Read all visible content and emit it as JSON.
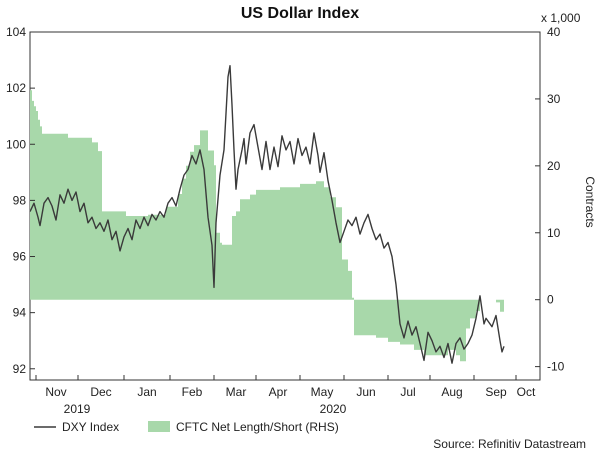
{
  "chart_data": {
    "type": "line",
    "title": "US Dollar Index",
    "left_axis": {
      "ticks": [
        92,
        94,
        96,
        98,
        100,
        102,
        104
      ],
      "ylim": [
        91.6,
        104
      ]
    },
    "right_axis": {
      "label": "Contracts",
      "multiplier": "x 1,000",
      "ticks": [
        -10,
        0,
        10,
        20,
        30,
        40
      ],
      "ylim": [
        -12,
        40
      ]
    },
    "x_axis": {
      "months": [
        "Nov",
        "Dec",
        "Jan",
        "Feb",
        "Mar",
        "Apr",
        "May",
        "Jun",
        "Jul",
        "Aug",
        "Sep",
        "Oct"
      ],
      "years": [
        "2019",
        "2020"
      ]
    },
    "legend": [
      {
        "name": "DXY Index",
        "symbol": "line",
        "color": "#3a3a3a"
      },
      {
        "name": "CFTC Net Length/Short (RHS)",
        "symbol": "area",
        "color": "#a8d8aa"
      }
    ],
    "source": "Source: Refinitiv Datastream",
    "series": [
      {
        "name": "DXY Index",
        "axis": "left",
        "color": "#3a3a3a",
        "points": [
          [
            0,
            97.6
          ],
          [
            4,
            97.9
          ],
          [
            8,
            97.4
          ],
          [
            10,
            97.1
          ],
          [
            14,
            97.9
          ],
          [
            18,
            98.1
          ],
          [
            22,
            97.8
          ],
          [
            26,
            97.3
          ],
          [
            30,
            98.2
          ],
          [
            34,
            97.9
          ],
          [
            38,
            98.4
          ],
          [
            42,
            98.0
          ],
          [
            46,
            98.3
          ],
          [
            50,
            97.6
          ],
          [
            54,
            97.9
          ],
          [
            58,
            97.2
          ],
          [
            62,
            97.4
          ],
          [
            66,
            97.0
          ],
          [
            70,
            97.2
          ],
          [
            74,
            96.9
          ],
          [
            78,
            97.3
          ],
          [
            82,
            96.6
          ],
          [
            86,
            96.9
          ],
          [
            90,
            96.2
          ],
          [
            94,
            96.7
          ],
          [
            98,
            97.0
          ],
          [
            102,
            96.6
          ],
          [
            106,
            97.3
          ],
          [
            110,
            97.0
          ],
          [
            114,
            97.4
          ],
          [
            118,
            97.1
          ],
          [
            122,
            97.5
          ],
          [
            126,
            97.3
          ],
          [
            130,
            97.6
          ],
          [
            134,
            97.4
          ],
          [
            138,
            97.9
          ],
          [
            142,
            98.1
          ],
          [
            146,
            97.8
          ],
          [
            150,
            98.4
          ],
          [
            154,
            98.9
          ],
          [
            158,
            99.1
          ],
          [
            162,
            99.6
          ],
          [
            166,
            99.3
          ],
          [
            170,
            99.8
          ],
          [
            174,
            99.1
          ],
          [
            178,
            97.4
          ],
          [
            182,
            96.4
          ],
          [
            184,
            94.9
          ],
          [
            186,
            97.2
          ],
          [
            190,
            98.9
          ],
          [
            194,
            99.8
          ],
          [
            198,
            102.4
          ],
          [
            200,
            102.8
          ],
          [
            202,
            101.4
          ],
          [
            204,
            99.8
          ],
          [
            206,
            98.4
          ],
          [
            208,
            99.1
          ],
          [
            212,
            99.8
          ],
          [
            214,
            100.2
          ],
          [
            216,
            99.3
          ],
          [
            220,
            100.4
          ],
          [
            224,
            100.7
          ],
          [
            228,
            99.9
          ],
          [
            232,
            99.1
          ],
          [
            236,
            100.1
          ],
          [
            240,
            99.1
          ],
          [
            244,
            99.9
          ],
          [
            248,
            99.2
          ],
          [
            252,
            100.3
          ],
          [
            256,
            99.8
          ],
          [
            260,
            100.1
          ],
          [
            264,
            99.3
          ],
          [
            268,
            100.2
          ],
          [
            272,
            99.6
          ],
          [
            276,
            99.9
          ],
          [
            280,
            99.3
          ],
          [
            284,
            100.4
          ],
          [
            288,
            99.6
          ],
          [
            290,
            99.0
          ],
          [
            294,
            99.7
          ],
          [
            298,
            98.7
          ],
          [
            302,
            98.0
          ],
          [
            306,
            97.2
          ],
          [
            310,
            96.5
          ],
          [
            314,
            96.9
          ],
          [
            318,
            97.3
          ],
          [
            322,
            97.1
          ],
          [
            326,
            97.4
          ],
          [
            330,
            96.8
          ],
          [
            334,
            97.2
          ],
          [
            338,
            97.5
          ],
          [
            342,
            97.0
          ],
          [
            346,
            96.6
          ],
          [
            350,
            96.8
          ],
          [
            354,
            96.3
          ],
          [
            358,
            96.5
          ],
          [
            362,
            96.0
          ],
          [
            366,
            95.0
          ],
          [
            370,
            93.6
          ],
          [
            374,
            93.1
          ],
          [
            378,
            93.7
          ],
          [
            382,
            93.2
          ],
          [
            386,
            93.5
          ],
          [
            390,
            92.9
          ],
          [
            394,
            92.3
          ],
          [
            398,
            93.3
          ],
          [
            402,
            93.0
          ],
          [
            406,
            92.6
          ],
          [
            410,
            92.8
          ],
          [
            414,
            92.4
          ],
          [
            418,
            92.9
          ],
          [
            422,
            92.2
          ],
          [
            426,
            92.9
          ],
          [
            430,
            93.1
          ],
          [
            434,
            92.7
          ],
          [
            438,
            92.9
          ],
          [
            442,
            93.2
          ],
          [
            446,
            93.8
          ],
          [
            450,
            94.6
          ],
          [
            454,
            93.6
          ],
          [
            456,
            93.8
          ],
          [
            458,
            93.7
          ],
          [
            462,
            93.5
          ],
          [
            466,
            93.9
          ],
          [
            470,
            93.0
          ],
          [
            472,
            92.6
          ],
          [
            474,
            92.8
          ]
        ]
      },
      {
        "name": "CFTC Net Length/Short (RHS)",
        "axis": "right",
        "color": "#a8d8aa",
        "points": [
          [
            0,
            31.3
          ],
          [
            2,
            31.3
          ],
          [
            2,
            29.7
          ],
          [
            4,
            29.7
          ],
          [
            4,
            28.9
          ],
          [
            6,
            28.9
          ],
          [
            6,
            28.2
          ],
          [
            8,
            28.2
          ],
          [
            8,
            26.9
          ],
          [
            10,
            26.9
          ],
          [
            10,
            25.9
          ],
          [
            12,
            25.9
          ],
          [
            12,
            24.8
          ],
          [
            38,
            24.8
          ],
          [
            38,
            24.2
          ],
          [
            62,
            24.2
          ],
          [
            62,
            23.5
          ],
          [
            68,
            23.5
          ],
          [
            68,
            22.2
          ],
          [
            72,
            22.2
          ],
          [
            72,
            13.2
          ],
          [
            96,
            13.2
          ],
          [
            96,
            12.5
          ],
          [
            118,
            12.5
          ],
          [
            118,
            12.7
          ],
          [
            136,
            12.7
          ],
          [
            136,
            13.9
          ],
          [
            148,
            13.9
          ],
          [
            148,
            15.8
          ],
          [
            152,
            15.8
          ],
          [
            152,
            18.1
          ],
          [
            156,
            18.1
          ],
          [
            156,
            20.0
          ],
          [
            160,
            20.0
          ],
          [
            160,
            22.1
          ],
          [
            164,
            22.1
          ],
          [
            164,
            23.1
          ],
          [
            170,
            23.1
          ],
          [
            170,
            25.3
          ],
          [
            178,
            25.3
          ],
          [
            178,
            22.3
          ],
          [
            184,
            22.3
          ],
          [
            184,
            20.1
          ],
          [
            186,
            20.1
          ],
          [
            186,
            10.0
          ],
          [
            190,
            10.0
          ],
          [
            190,
            8.5
          ],
          [
            192,
            8.5
          ],
          [
            192,
            8.2
          ],
          [
            202,
            8.2
          ],
          [
            202,
            12.5
          ],
          [
            206,
            12.5
          ],
          [
            206,
            13.2
          ],
          [
            210,
            13.2
          ],
          [
            210,
            15.0
          ],
          [
            220,
            15.0
          ],
          [
            220,
            15.7
          ],
          [
            226,
            15.7
          ],
          [
            226,
            16.4
          ],
          [
            250,
            16.4
          ],
          [
            250,
            16.8
          ],
          [
            270,
            16.8
          ],
          [
            270,
            17.3
          ],
          [
            286,
            17.3
          ],
          [
            286,
            17.7
          ],
          [
            294,
            17.7
          ],
          [
            294,
            16.8
          ],
          [
            300,
            16.8
          ],
          [
            300,
            15.3
          ],
          [
            306,
            15.3
          ],
          [
            306,
            13.8
          ],
          [
            312,
            13.8
          ],
          [
            312,
            6.0
          ],
          [
            318,
            6.0
          ],
          [
            318,
            4.3
          ],
          [
            322,
            4.3
          ],
          [
            322,
            0.3
          ],
          [
            324,
            0.3
          ],
          [
            324,
            -5.3
          ],
          [
            346,
            -5.3
          ],
          [
            346,
            -5.7
          ],
          [
            358,
            -5.7
          ],
          [
            358,
            -6.3
          ],
          [
            370,
            -6.3
          ],
          [
            370,
            -6.7
          ],
          [
            384,
            -6.7
          ],
          [
            384,
            -7.5
          ],
          [
            394,
            -7.5
          ],
          [
            394,
            -8.3
          ],
          [
            418,
            -8.3
          ],
          [
            418,
            -7.5
          ],
          [
            426,
            -7.5
          ],
          [
            426,
            -8.3
          ],
          [
            430,
            -8.3
          ],
          [
            430,
            -9.2
          ],
          [
            436,
            -9.2
          ],
          [
            436,
            -4.3
          ],
          [
            440,
            -4.3
          ],
          [
            440,
            -2.8
          ],
          [
            446,
            -2.8
          ],
          [
            446,
            -1.7
          ],
          [
            450,
            -1.7
          ],
          [
            450,
            0
          ],
          [
            466,
            0
          ],
          [
            466,
            -0.4
          ],
          [
            470,
            -0.4
          ],
          [
            470,
            -1.8
          ],
          [
            474,
            -1.8
          ],
          [
            474,
            0
          ]
        ]
      }
    ]
  }
}
